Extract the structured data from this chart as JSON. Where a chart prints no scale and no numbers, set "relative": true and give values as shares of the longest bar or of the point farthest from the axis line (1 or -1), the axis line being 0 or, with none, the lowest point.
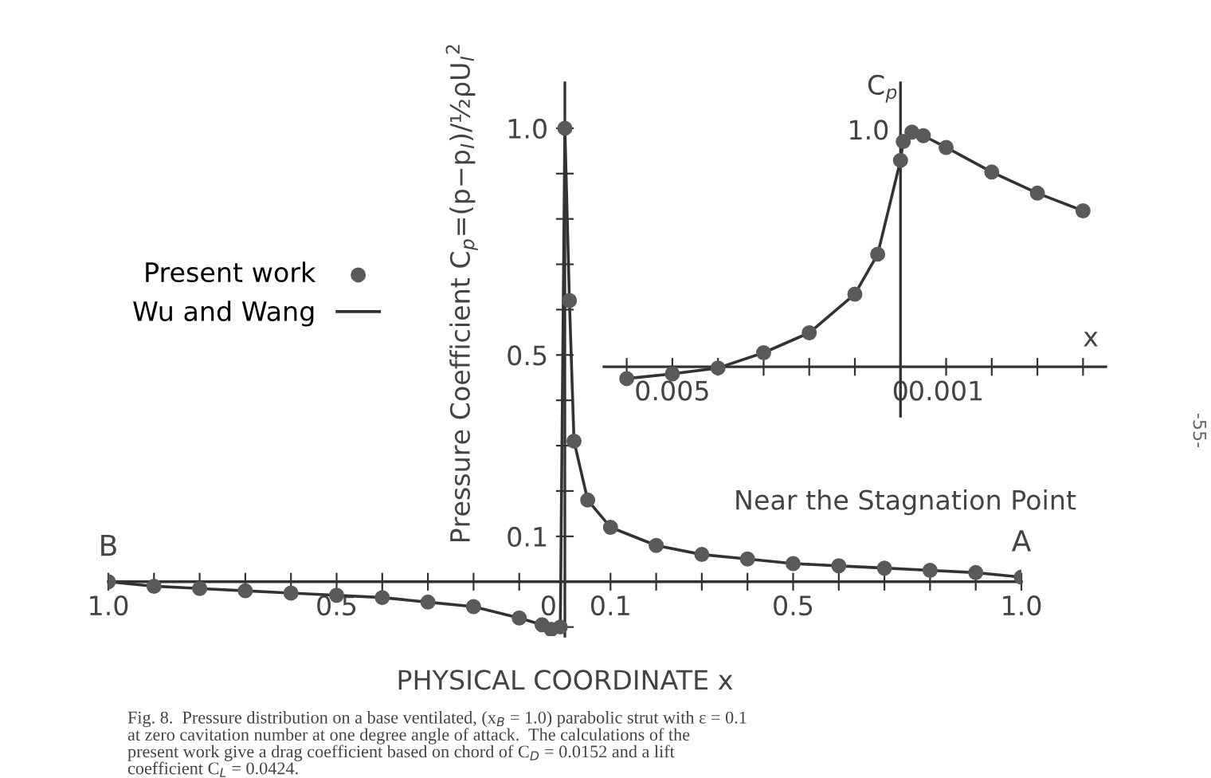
{
  "chart_data": [
    {
      "type": "line",
      "xlabel": "PHYSICAL COORDINATE x",
      "ylabel": "Pressure Coefficient C$_{p}$=(p−p$_{I}$)/½ρU$_{I}$$^{2}$",
      "xlim": [
        -1.0,
        1.0
      ],
      "ylim": [
        -0.12,
        1.1
      ],
      "xticks": [
        {
          "value": -1.0,
          "label": "1.0"
        },
        {
          "value": -0.9,
          "label": null
        },
        {
          "value": -0.8,
          "label": null
        },
        {
          "value": -0.7,
          "label": null
        },
        {
          "value": -0.6,
          "label": null
        },
        {
          "value": -0.5,
          "label": "0.5"
        },
        {
          "value": -0.4,
          "label": null
        },
        {
          "value": -0.3,
          "label": null
        },
        {
          "value": -0.2,
          "label": null
        },
        {
          "value": -0.1,
          "label": null
        },
        0,
        {
          "value": 0.1,
          "label": "0.1"
        },
        {
          "value": 0.2,
          "label": null
        },
        {
          "value": 0.3,
          "label": null
        },
        {
          "value": 0.4,
          "label": null
        },
        {
          "value": 0.5,
          "label": "0.5"
        },
        {
          "value": 0.6,
          "label": null
        },
        {
          "value": 0.7,
          "label": null
        },
        {
          "value": 0.8,
          "label": null
        },
        {
          "value": 0.9,
          "label": null
        },
        {
          "value": 1.0,
          "label": "1.0"
        }
      ],
      "yticks": [
        {
          "value": -0.1,
          "label": null
        },
        {
          "value": 0.1,
          "label": "0.1"
        },
        {
          "value": 0.2,
          "label": null
        },
        {
          "value": 0.3,
          "label": null
        },
        {
          "value": 0.4,
          "label": null
        },
        {
          "value": 0.5,
          "label": "0.5"
        },
        {
          "value": 0.6,
          "label": null
        },
        {
          "value": 0.7,
          "label": null
        },
        {
          "value": 0.8,
          "label": null
        },
        {
          "value": 0.9,
          "label": null
        },
        {
          "value": 1.0,
          "label": "1.0"
        }
      ],
      "legend": "top left",
      "series": [
        {
          "name": "Present work",
          "type": "scatter",
          "marker": "circle",
          "color": "#5a5a5a",
          "x": [
            -1.0,
            -0.9,
            -0.8,
            -0.7,
            -0.6,
            -0.5,
            -0.4,
            -0.3,
            -0.2,
            -0.1,
            -0.05,
            -0.03,
            -0.01,
            0,
            0.01,
            0.02,
            0.05,
            0.1,
            0.2,
            0.3,
            0.4,
            0.5,
            0.6,
            0.7,
            0.8,
            0.9,
            1.0
          ],
          "values": [
            0,
            -0.01,
            -0.015,
            -0.02,
            -0.025,
            -0.03,
            -0.035,
            -0.045,
            -0.055,
            -0.08,
            -0.095,
            -0.105,
            -0.1,
            1.0,
            0.62,
            0.31,
            0.18,
            0.12,
            0.08,
            0.06,
            0.05,
            0.04,
            0.035,
            0.03,
            0.025,
            0.02,
            0.01
          ]
        },
        {
          "name": "Wu and Wang",
          "marker": "none",
          "line_style": "solid",
          "color": "#333333",
          "x": [
            -1.0,
            -0.9,
            -0.8,
            -0.7,
            -0.6,
            -0.5,
            -0.4,
            -0.3,
            -0.2,
            -0.1,
            -0.05,
            -0.03,
            -0.01,
            0,
            0.01,
            0.02,
            0.05,
            0.1,
            0.2,
            0.3,
            0.4,
            0.5,
            0.6,
            0.7,
            0.8,
            0.9,
            1.0
          ],
          "values": [
            0,
            -0.01,
            -0.015,
            -0.02,
            -0.025,
            -0.03,
            -0.035,
            -0.045,
            -0.055,
            -0.08,
            -0.095,
            -0.105,
            -0.1,
            1.0,
            0.62,
            0.31,
            0.18,
            0.12,
            0.08,
            0.06,
            0.05,
            0.04,
            0.035,
            0.03,
            0.025,
            0.02,
            0.01
          ]
        }
      ],
      "annotations": [
        {
          "text": "B",
          "x": -1.0,
          "y": 0
        },
        {
          "text": "A",
          "x": 1.0,
          "y": 0.01
        },
        "Fig. 8.  Pressure distribution on a base ventilated, (x$_{B}$ = 1.0) parabolic strut with ε = 0.1\nat zero cavitation number at one degree angle of attack.  The calculations of the\npresent work give a drag coefficient based on chord of C$_{D}$ = 0.0152 and a lift\ncoefficient C$_{L}$ = 0.0424.",
        "-55-"
      ]
    },
    {
      "type": "line",
      "xlabel": "x",
      "ylabel": "C$_{p}$",
      "xlim": [
        -0.0065,
        0.0045
      ],
      "relative": true,
      "xticks": [
        {
          "value": -0.006,
          "label": null
        },
        {
          "value": -0.005,
          "label": "0.005"
        },
        {
          "value": -0.004,
          "label": null
        },
        {
          "value": -0.003,
          "label": null
        },
        {
          "value": -0.002,
          "label": null
        },
        {
          "value": -0.001,
          "label": null
        },
        0,
        {
          "value": 0.001,
          "label": "0.001"
        },
        {
          "value": 0.002,
          "label": null
        },
        {
          "value": 0.003,
          "label": null
        },
        {
          "value": 0.004,
          "label": null
        }
      ],
      "series": [
        {
          "type": "scatter",
          "marker": "circle",
          "color": "#5a5a5a",
          "x": [
            -0.006,
            -0.005,
            -0.004,
            -0.003,
            -0.002,
            -0.001,
            -0.0005,
            0,
            6e-05,
            0.00025,
            0.0005,
            0.001,
            0.002,
            0.003,
            0.004
          ],
          "values": [
            -0.05,
            -0.03,
            -0.005,
            0.06,
            0.145,
            0.31,
            0.48,
            0.88,
            0.96,
            1.0,
            0.985,
            0.935,
            0.83,
            0.74,
            0.665
          ]
        },
        {
          "marker": "none",
          "line_style": "solid",
          "color": "#333333",
          "x": [
            -0.006,
            -0.005,
            -0.004,
            -0.003,
            -0.002,
            -0.001,
            -0.0005,
            0,
            6e-05,
            0.00025,
            0.0005,
            0.001,
            0.002,
            0.003,
            0.004
          ],
          "values": [
            -0.05,
            -0.03,
            -0.005,
            0.06,
            0.145,
            0.31,
            0.48,
            0.88,
            0.96,
            1.0,
            0.985,
            0.935,
            0.83,
            0.74,
            0.665
          ]
        }
      ],
      "annotations": [
        "1.0",
        "Near the Stagnation Point"
      ]
    }
  ]
}
